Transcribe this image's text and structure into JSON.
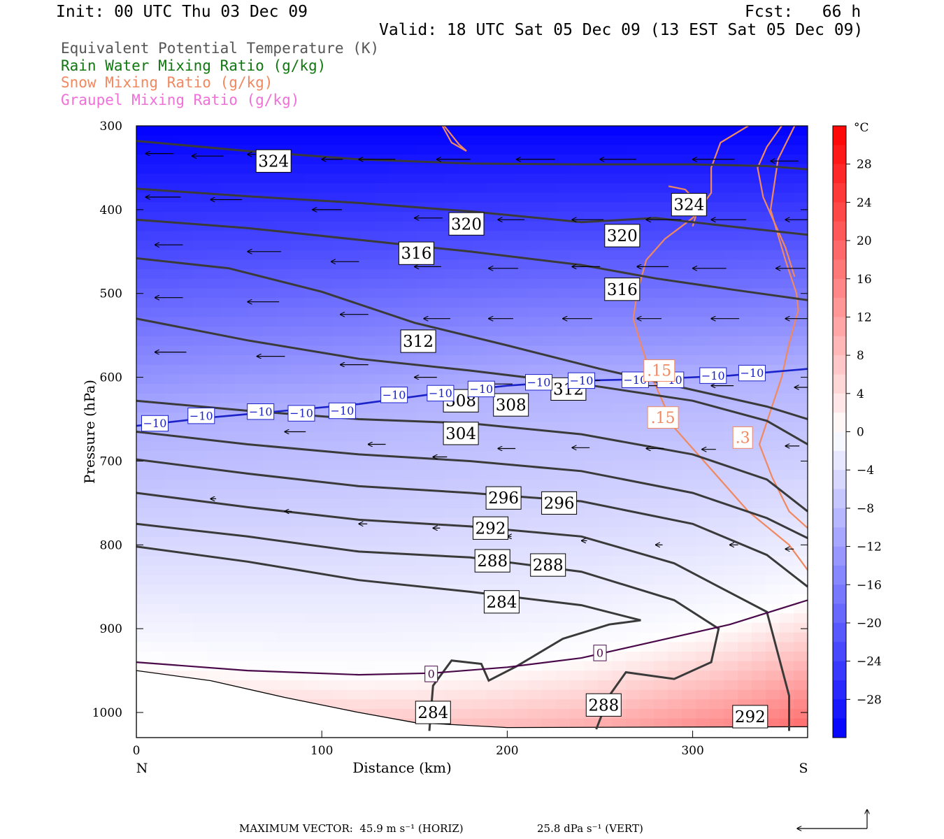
{
  "header": {
    "init": "Init: 00 UTC Thu 03 Dec 09",
    "fcst": "Fcst:   66 h",
    "valid": "Valid: 18 UTC Sat 05 Dec 09 (13 EST Sat 05 Dec 09)"
  },
  "legend": [
    {
      "label": "Equivalent Potential Temperature (K)",
      "color": "#555555"
    },
    {
      "label": "Rain Water Mixing Ratio (g/kg)",
      "color": "#117711"
    },
    {
      "label": "Snow Mixing Ratio (g/kg)",
      "color": "#f08860"
    },
    {
      "label": "Graupel Mixing Ratio (g/kg)",
      "color": "#f070d8"
    }
  ],
  "chart_data": {
    "type": "cross-section",
    "xlabel": "Distance (km)",
    "ylabel": "Pressure (hPa)",
    "xlim": [
      0,
      362
    ],
    "ylim": [
      1030,
      300
    ],
    "x_ticks": [
      0,
      100,
      200,
      300
    ],
    "y_ticks": [
      300,
      400,
      500,
      600,
      700,
      800,
      900,
      1000
    ],
    "x_end_labels": {
      "left": "N",
      "right": "S"
    },
    "colorbar": {
      "unit": "°C",
      "ticks": [
        "28",
        "24",
        "20",
        "16",
        "12",
        "8",
        "4",
        "0",
        "−4",
        "−8",
        "−12",
        "−16",
        "−20",
        "−24",
        "−28"
      ],
      "tick_values": [
        28,
        24,
        20,
        16,
        12,
        8,
        4,
        0,
        -4,
        -8,
        -12,
        -16,
        -20,
        -24,
        -28
      ]
    },
    "theta_e_contours": [
      {
        "value": 324,
        "points": [
          [
            0,
            318
          ],
          [
            60,
            330
          ],
          [
            120,
            340
          ],
          [
            180,
            345
          ],
          [
            240,
            346
          ],
          [
            300,
            346
          ],
          [
            340,
            348
          ],
          [
            362,
            352
          ]
        ]
      },
      {
        "value": 320,
        "points": [
          [
            0,
            375
          ],
          [
            60,
            384
          ],
          [
            120,
            392
          ],
          [
            180,
            402
          ],
          [
            240,
            415
          ],
          [
            280,
            410
          ],
          [
            320,
            420
          ],
          [
            362,
            430
          ]
        ]
      },
      {
        "value": 316,
        "points": [
          [
            0,
            412
          ],
          [
            60,
            422
          ],
          [
            120,
            436
          ],
          [
            180,
            450
          ],
          [
            240,
            466
          ],
          [
            280,
            482
          ],
          [
            320,
            495
          ],
          [
            362,
            508
          ]
        ]
      },
      {
        "value": 312,
        "points": [
          [
            0,
            458
          ],
          [
            50,
            470
          ],
          [
            100,
            498
          ],
          [
            150,
            535
          ],
          [
            200,
            562
          ],
          [
            250,
            590
          ],
          [
            300,
            615
          ],
          [
            340,
            635
          ],
          [
            362,
            650
          ]
        ]
      },
      {
        "value": 308,
        "points": [
          [
            0,
            530
          ],
          [
            60,
            556
          ],
          [
            120,
            578
          ],
          [
            180,
            592
          ],
          [
            240,
            608
          ],
          [
            300,
            628
          ],
          [
            340,
            652
          ],
          [
            362,
            680
          ]
        ]
      },
      {
        "value": 304,
        "points": [
          [
            0,
            628
          ],
          [
            60,
            640
          ],
          [
            120,
            650
          ],
          [
            180,
            655
          ],
          [
            240,
            668
          ],
          [
            300,
            692
          ],
          [
            340,
            722
          ],
          [
            362,
            760
          ]
        ]
      },
      {
        "value": 300,
        "points": [
          [
            0,
            665
          ],
          [
            60,
            680
          ],
          [
            120,
            692
          ],
          [
            180,
            700
          ],
          [
            240,
            712
          ],
          [
            300,
            738
          ],
          [
            340,
            768
          ],
          [
            362,
            792
          ]
        ]
      },
      {
        "value": 296,
        "points": [
          [
            0,
            698
          ],
          [
            60,
            715
          ],
          [
            120,
            730
          ],
          [
            180,
            738
          ],
          [
            240,
            748
          ],
          [
            300,
            775
          ],
          [
            340,
            812
          ],
          [
            362,
            850
          ]
        ]
      },
      {
        "value": 292,
        "points": [
          [
            0,
            738
          ],
          [
            60,
            755
          ],
          [
            120,
            770
          ],
          [
            180,
            778
          ],
          [
            240,
            790
          ],
          [
            290,
            822
          ],
          [
            340,
            880
          ],
          [
            352,
            980
          ],
          [
            352,
            1022
          ]
        ]
      },
      {
        "value": 288,
        "points": [
          [
            0,
            775
          ],
          [
            60,
            790
          ],
          [
            120,
            808
          ],
          [
            180,
            815
          ],
          [
            240,
            832
          ],
          [
            290,
            866
          ],
          [
            314,
            900
          ],
          [
            310,
            940
          ],
          [
            290,
            960
          ],
          [
            264,
            952
          ],
          [
            255,
            980
          ],
          [
            248,
            1020
          ]
        ]
      },
      {
        "value": 284,
        "points": [
          [
            0,
            802
          ],
          [
            60,
            820
          ],
          [
            120,
            842
          ],
          [
            180,
            856
          ],
          [
            240,
            872
          ],
          [
            272,
            890
          ],
          [
            255,
            895
          ],
          [
            230,
            912
          ],
          [
            205,
            945
          ],
          [
            190,
            962
          ],
          [
            186,
            942
          ],
          [
            170,
            938
          ],
          [
            160,
            968
          ],
          [
            158,
            1022
          ]
        ]
      }
    ],
    "isotherms": [
      {
        "value": -10,
        "points": [
          [
            0,
            658
          ],
          [
            40,
            648
          ],
          [
            80,
            640
          ],
          [
            120,
            632
          ],
          [
            160,
            620
          ],
          [
            200,
            610
          ],
          [
            240,
            604
          ],
          [
            280,
            602
          ],
          [
            320,
            598
          ],
          [
            362,
            590
          ]
        ]
      },
      {
        "value": 0,
        "points": [
          [
            0,
            940
          ],
          [
            60,
            950
          ],
          [
            120,
            955
          ],
          [
            160,
            953
          ],
          [
            200,
            946
          ],
          [
            240,
            935
          ],
          [
            280,
            915
          ],
          [
            320,
            895
          ],
          [
            362,
            866
          ]
        ]
      }
    ],
    "isotherm_labels": [
      {
        "text": "−10",
        "x": 10,
        "p": 655
      },
      {
        "text": "−10",
        "x": 35,
        "p": 646
      },
      {
        "text": "−10",
        "x": 67,
        "p": 641
      },
      {
        "text": "−10",
        "x": 89,
        "p": 643
      },
      {
        "text": "−10",
        "x": 111,
        "p": 640
      },
      {
        "text": "−10",
        "x": 139,
        "p": 621
      },
      {
        "text": "−10",
        "x": 164,
        "p": 619
      },
      {
        "text": "−10",
        "x": 186,
        "p": 614
      },
      {
        "text": "−10",
        "x": 217,
        "p": 606
      },
      {
        "text": "−10",
        "x": 240,
        "p": 604
      },
      {
        "text": "−10",
        "x": 269,
        "p": 603
      },
      {
        "text": "−10",
        "x": 288,
        "p": 603
      },
      {
        "text": "−10",
        "x": 311,
        "p": 598
      },
      {
        "text": "−10",
        "x": 332,
        "p": 595
      },
      {
        "text": "0",
        "x": 159,
        "p": 954
      },
      {
        "text": "0",
        "x": 250,
        "p": 929
      }
    ],
    "theta_e_labels": [
      {
        "text": "324",
        "x": 74,
        "p": 342
      },
      {
        "text": "324",
        "x": 298,
        "p": 394
      },
      {
        "text": "320",
        "x": 178,
        "p": 417
      },
      {
        "text": "320",
        "x": 262,
        "p": 431
      },
      {
        "text": "316",
        "x": 151,
        "p": 452
      },
      {
        "text": "316",
        "x": 262,
        "p": 495
      },
      {
        "text": "312",
        "x": 152,
        "p": 557
      },
      {
        "text": "312",
        "x": 233,
        "p": 614
      },
      {
        "text": "308",
        "x": 175,
        "p": 628
      },
      {
        "text": "308",
        "x": 202,
        "p": 633
      },
      {
        "text": "304",
        "x": 175,
        "p": 667
      },
      {
        "text": "296",
        "x": 198,
        "p": 744
      },
      {
        "text": "296",
        "x": 228,
        "p": 750
      },
      {
        "text": "292",
        "x": 191,
        "p": 780
      },
      {
        "text": "288",
        "x": 192,
        "p": 819
      },
      {
        "text": "288",
        "x": 222,
        "p": 824
      },
      {
        "text": "284",
        "x": 197,
        "p": 868
      },
      {
        "text": "284",
        "x": 160,
        "p": 1000
      },
      {
        "text": "288",
        "x": 252,
        "p": 991
      },
      {
        "text": "292",
        "x": 331,
        "p": 1005
      }
    ],
    "snow_contours": [
      {
        "value": 0.15,
        "points": [
          [
            348,
            300
          ],
          [
            340,
            325
          ],
          [
            335,
            350
          ],
          [
            338,
            385
          ],
          [
            345,
            420
          ],
          [
            350,
            445
          ],
          [
            355,
            480
          ]
        ]
      },
      {
        "value": 0.15,
        "points": [
          [
            330,
            300
          ],
          [
            315,
            320
          ],
          [
            310,
            350
          ],
          [
            310,
            380
          ],
          [
            300,
            410
          ],
          [
            285,
            435
          ],
          [
            275,
            460
          ],
          [
            270,
            500
          ],
          [
            268,
            530
          ],
          [
            272,
            560
          ],
          [
            278,
            600
          ],
          [
            290,
            660
          ],
          [
            310,
            710
          ],
          [
            330,
            760
          ],
          [
            352,
            800
          ],
          [
            362,
            830
          ]
        ]
      },
      {
        "value": 0.3,
        "points": [
          [
            355,
            300
          ],
          [
            346,
            340
          ],
          [
            342,
            400
          ],
          [
            350,
            460
          ],
          [
            356,
            500
          ],
          [
            357,
            520
          ],
          [
            352,
            560
          ],
          [
            348,
            600
          ],
          [
            342,
            640
          ],
          [
            336,
            680
          ],
          [
            343,
            720
          ],
          [
            352,
            760
          ],
          [
            362,
            780
          ]
        ]
      },
      {
        "value": 0.15,
        "points": [
          [
            166,
            300
          ],
          [
            174,
            322
          ],
          [
            178,
            330
          ],
          [
            170,
            320
          ],
          [
            165,
            300
          ]
        ]
      },
      {
        "value": 0.15,
        "points": [
          [
            287,
            372
          ],
          [
            296,
            376
          ],
          [
            302,
            390
          ],
          [
            302,
            405
          ],
          [
            300,
            420
          ]
        ]
      }
    ],
    "snow_labels": [
      {
        "text": ".15",
        "x": 282,
        "p": 592
      },
      {
        "text": ".15",
        "x": 284,
        "p": 648
      },
      {
        "text": ".3",
        "x": 327,
        "p": 672
      }
    ],
    "wind_vectors": [
      [
        5,
        333,
        40,
        0
      ],
      [
        30,
        336,
        45,
        0
      ],
      [
        60,
        334,
        44,
        0
      ],
      [
        100,
        340,
        30,
        0
      ],
      [
        120,
        340,
        52,
        0
      ],
      [
        162,
        340,
        48,
        0
      ],
      [
        205,
        340,
        55,
        0
      ],
      [
        250,
        340,
        52,
        0
      ],
      [
        300,
        340,
        60,
        0
      ],
      [
        342,
        342,
        40,
        0
      ],
      [
        5,
        385,
        50,
        0
      ],
      [
        40,
        388,
        45,
        0
      ],
      [
        95,
        400,
        42,
        0
      ],
      [
        150,
        410,
        40,
        0
      ],
      [
        195,
        412,
        38,
        0
      ],
      [
        235,
        412,
        45,
        0
      ],
      [
        275,
        412,
        50,
        0
      ],
      [
        310,
        412,
        50,
        0
      ],
      [
        350,
        412,
        45,
        0
      ],
      [
        10,
        442,
        40,
        0
      ],
      [
        60,
        450,
        48,
        0
      ],
      [
        105,
        462,
        40,
        0
      ],
      [
        150,
        468,
        38,
        0
      ],
      [
        190,
        470,
        42,
        0
      ],
      [
        235,
        468,
        40,
        0
      ],
      [
        270,
        468,
        45,
        0
      ],
      [
        300,
        470,
        48,
        0
      ],
      [
        345,
        470,
        42,
        0
      ],
      [
        10,
        505,
        40,
        0
      ],
      [
        60,
        510,
        45,
        0
      ],
      [
        110,
        525,
        40,
        0
      ],
      [
        155,
        530,
        38,
        0
      ],
      [
        190,
        530,
        35,
        0
      ],
      [
        230,
        530,
        42,
        0
      ],
      [
        270,
        530,
        35,
        0
      ],
      [
        310,
        530,
        40,
        0
      ],
      [
        350,
        530,
        45,
        0
      ],
      [
        10,
        570,
        45,
        0
      ],
      [
        65,
        575,
        40,
        0
      ],
      [
        110,
        585,
        40,
        0
      ],
      [
        150,
        600,
        32,
        0
      ],
      [
        190,
        608,
        34,
        0
      ],
      [
        235,
        604,
        40,
        0
      ],
      [
        270,
        610,
        30,
        0
      ],
      [
        310,
        610,
        32,
        0
      ],
      [
        355,
        612,
        38,
        0
      ],
      [
        30,
        645,
        30,
        0
      ],
      [
        80,
        665,
        30,
        0
      ],
      [
        125,
        680,
        25,
        0
      ],
      [
        160,
        695,
        20,
        0
      ],
      [
        195,
        685,
        25,
        0
      ],
      [
        235,
        684,
        25,
        0
      ],
      [
        275,
        685,
        25,
        0
      ],
      [
        305,
        686,
        20,
        0
      ],
      [
        350,
        682,
        20,
        0
      ],
      [
        40,
        745,
        8,
        0
      ],
      [
        80,
        760,
        10,
        0
      ],
      [
        120,
        775,
        12,
        0
      ],
      [
        160,
        780,
        10,
        0
      ],
      [
        200,
        790,
        6,
        0
      ],
      [
        240,
        795,
        8,
        0
      ],
      [
        280,
        800,
        10,
        0
      ],
      [
        320,
        800,
        12,
        0
      ],
      [
        350,
        805,
        12,
        0
      ]
    ],
    "max_vector": {
      "horiz": "MAXIMUM VECTOR:  45.9 m s⁻¹ (HORIZ)",
      "vert": "25.8 dPa s⁻¹ (VERT)"
    }
  }
}
